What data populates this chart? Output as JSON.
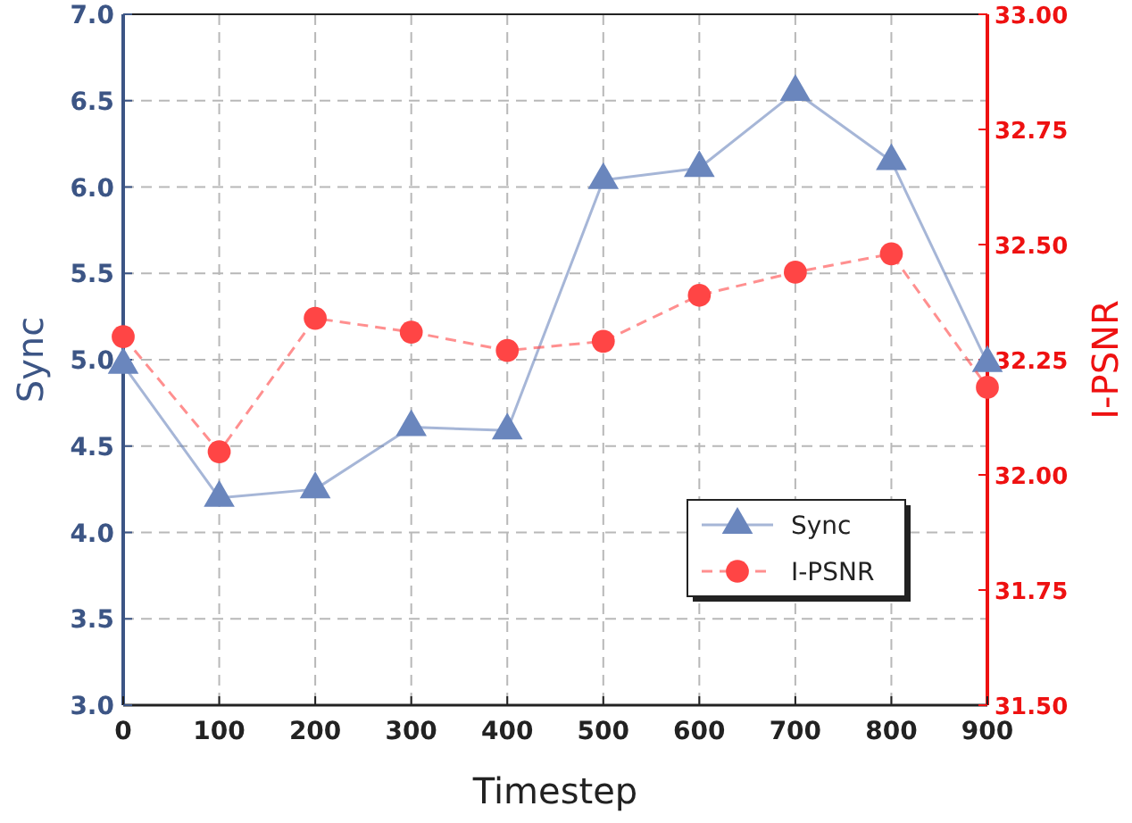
{
  "chart_data": {
    "type": "line",
    "xlabel": "Timestep",
    "ylabel": "Sync",
    "y2label": "I-PSNR",
    "x": [
      0,
      100,
      200,
      300,
      400,
      500,
      600,
      700,
      800,
      900
    ],
    "series": [
      {
        "name": "Sync",
        "color": "#6a86bd",
        "marker": "triangle",
        "line_style": "solid",
        "values": [
          4.97,
          4.2,
          4.25,
          4.61,
          4.59,
          6.04,
          6.11,
          6.55,
          6.15,
          4.98
        ]
      },
      {
        "name": "I-PSNR",
        "color": "#ff4545",
        "marker": "circle",
        "line_style": "dashed",
        "axis": "y2",
        "values": [
          32.3,
          32.05,
          32.34,
          32.31,
          32.27,
          32.29,
          32.39,
          32.44,
          32.48,
          32.19
        ]
      }
    ],
    "xlim": [
      0,
      900
    ],
    "xticks": [
      0,
      100,
      200,
      300,
      400,
      500,
      600,
      700,
      800,
      900
    ],
    "ylim": [
      3,
      7
    ],
    "yticks": [
      {
        "value": 3,
        "label": "3.0"
      },
      {
        "value": 3.5,
        "label": "3.5"
      },
      {
        "value": 4,
        "label": "4.0"
      },
      {
        "value": 4.5,
        "label": "4.5"
      },
      {
        "value": 5,
        "label": "5.0"
      },
      {
        "value": 5.5,
        "label": "5.5"
      },
      {
        "value": 6,
        "label": "6.0"
      },
      {
        "value": 6.5,
        "label": "6.5"
      },
      {
        "value": 7,
        "label": "7.0"
      }
    ],
    "y2lim": [
      31.5,
      33
    ],
    "y2ticks": [
      {
        "value": 31.5,
        "label": "31.50"
      },
      {
        "value": 31.75,
        "label": "31.75"
      },
      {
        "value": 32,
        "label": "32.00"
      },
      {
        "value": 32.25,
        "label": "32.25"
      },
      {
        "value": 32.5,
        "label": "32.50"
      },
      {
        "value": 32.75,
        "label": "32.75"
      },
      {
        "value": 33,
        "label": "33.00"
      }
    ],
    "grid": true,
    "legend": "bottom right"
  }
}
